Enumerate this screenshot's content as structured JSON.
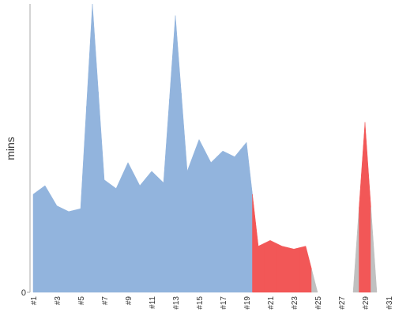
{
  "chart_data": {
    "type": "area",
    "y_label": "mins",
    "categories": [
      "#1",
      null,
      "#3",
      null,
      "#5",
      null,
      "#7",
      null,
      "#9",
      null,
      "#11",
      null,
      "#13",
      null,
      "#15",
      null,
      "#17",
      null,
      "#19",
      null,
      "#21",
      null,
      "#23",
      null,
      "#25",
      null,
      "#27",
      null,
      "#29",
      null,
      "#31"
    ],
    "values": [
      34,
      37,
      30,
      28,
      29,
      100,
      39,
      36,
      45,
      37,
      42,
      38,
      96,
      42,
      53,
      45,
      49,
      47,
      52,
      16,
      18,
      16,
      15,
      16,
      0,
      null,
      null,
      0,
      59,
      0,
      null
    ],
    "point_colors": [
      "#92b4dd",
      "#92b4dd",
      "#92b4dd",
      "#92b4dd",
      "#92b4dd",
      "#92b4dd",
      "#92b4dd",
      "#92b4dd",
      "#92b4dd",
      "#92b4dd",
      "#92b4dd",
      "#92b4dd",
      "#92b4dd",
      "#92b4dd",
      "#92b4dd",
      "#92b4dd",
      "#92b4dd",
      "#92b4dd",
      "#92b4dd",
      "#f25757",
      "#f25757",
      "#f25757",
      "#f25757",
      "#f25757",
      "#c0c0c0",
      "#c0c0c0",
      "#c0c0c0",
      "#c0c0c0",
      "#f25757",
      "#c0c0c0",
      "#c0c0c0"
    ],
    "ylim": [
      0,
      100
    ],
    "yticks": [
      0
    ]
  }
}
